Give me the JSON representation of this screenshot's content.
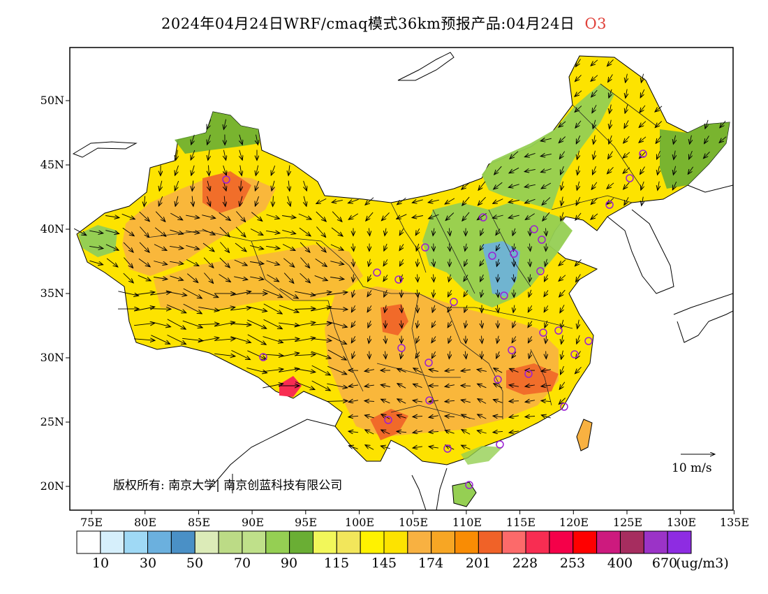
{
  "title": {
    "main": "2024年04月24日WRF/cmaq模式36km预报产品:04月24日",
    "species": "O3"
  },
  "axes": {
    "lat_labels": [
      "50N",
      "45N",
      "40N",
      "35N",
      "30N",
      "25N",
      "20N"
    ],
    "lon_labels": [
      "75E",
      "80E",
      "85E",
      "90E",
      "95E",
      "100E",
      "105E",
      "110E",
      "115E",
      "120E",
      "125E",
      "130E",
      "135E"
    ]
  },
  "copyright": "版权所有: 南京大学| 南京创蓝科技有限公司",
  "wind_reference": "10 m/s",
  "legend": {
    "colors": [
      "#ffffff",
      "#d6effb",
      "#9fd9f5",
      "#6bb0de",
      "#4a90c6",
      "#dcebb8",
      "#bcdb86",
      "#bfe08a",
      "#95cf53",
      "#6aae34",
      "#f2f75a",
      "#f2e65b",
      "#fff200",
      "#fde300",
      "#f8b141",
      "#f7a624",
      "#f98c04",
      "#f06228",
      "#fc6a6a",
      "#f82d52",
      "#f50049",
      "#ff0000",
      "#cd1a7e",
      "#a62d5f",
      "#9b33c7",
      "#8e2ce2"
    ],
    "labels": [
      "10",
      "30",
      "50",
      "70",
      "90",
      "115",
      "145",
      "174",
      "201",
      "228",
      "253",
      "400",
      "670"
    ],
    "unit": "(ug/m3)"
  },
  "colors": {
    "station_marker": "#9b1fd4",
    "frame": "#000000"
  }
}
